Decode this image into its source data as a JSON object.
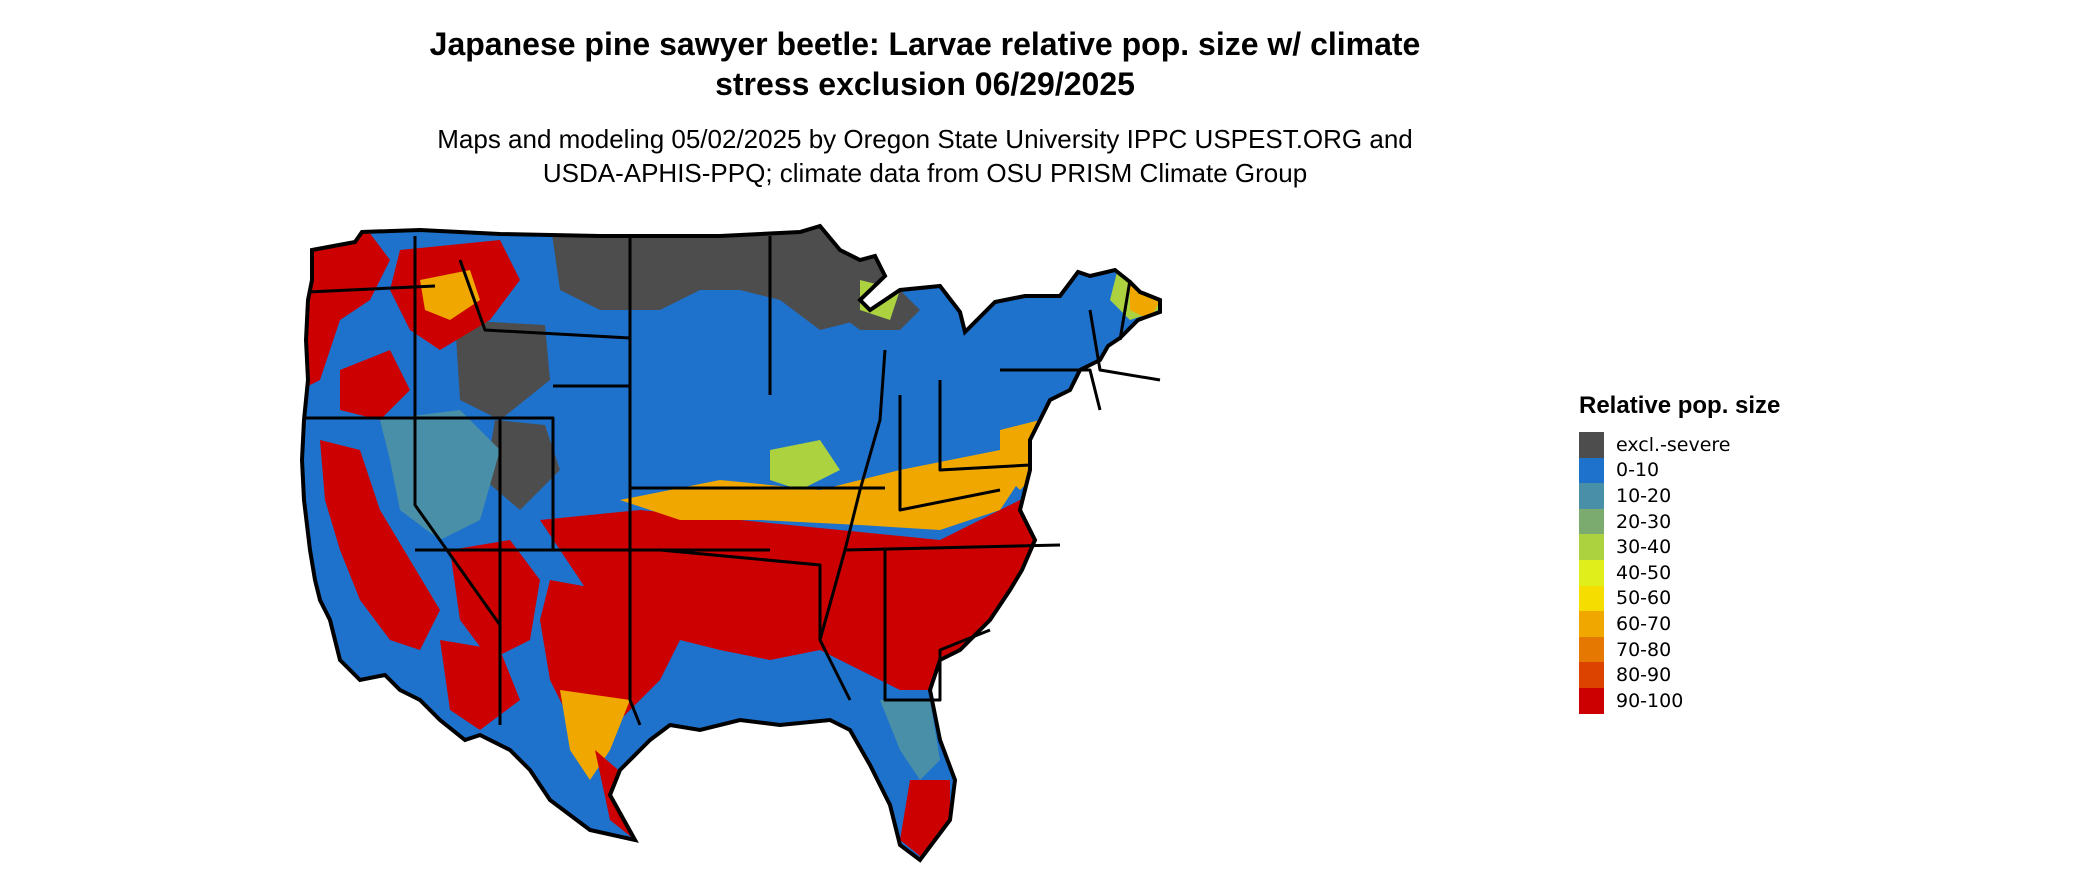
{
  "title_line1": "Japanese pine sawyer beetle: Larvae relative pop. size w/ climate",
  "title_line2": "stress exclusion 06/29/2025",
  "subtitle_line1": "Maps and modeling 05/02/2025 by Oregon State University IPPC USPEST.ORG and",
  "subtitle_line2": "USDA-APHIS-PPQ; climate data from OSU PRISM Climate Group",
  "legend": {
    "title": "Relative pop. size",
    "items": [
      {
        "label": "excl.-severe",
        "color": "#4d4d4d"
      },
      {
        "label": "0-10",
        "color": "#1e72cc"
      },
      {
        "label": "10-20",
        "color": "#4a8fa8"
      },
      {
        "label": "20-30",
        "color": "#7bab6e"
      },
      {
        "label": "30-40",
        "color": "#acd240"
      },
      {
        "label": "40-50",
        "color": "#e0ee1c"
      },
      {
        "label": "50-60",
        "color": "#f6dd00"
      },
      {
        "label": "60-70",
        "color": "#f0a800"
      },
      {
        "label": "70-80",
        "color": "#e57800"
      },
      {
        "label": "80-90",
        "color": "#dc4200"
      },
      {
        "label": "90-100",
        "color": "#cc0000"
      }
    ]
  }
}
